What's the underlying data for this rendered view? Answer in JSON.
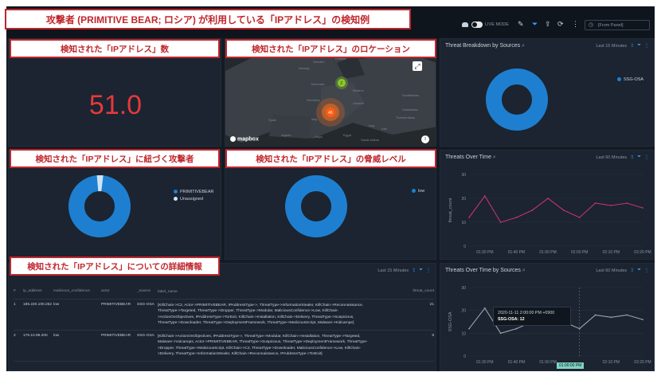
{
  "callouts": {
    "main": "攻撃者 (PRIMITIVE BEAR; ロシア) が利用している「IPアドレス」の検知例",
    "count": "検知された「IPアドレス」数",
    "location": "検知された「IPアドレス」のロケーション",
    "attacker": "検知された「IPアドレス」に紐づく攻撃者",
    "threat_level": "検知された「IPアドレス」の脅威レベル",
    "details": "検知された「IPアドレス」についての詳細情報"
  },
  "toolbar": {
    "live_mode": "LIVE MODE",
    "time_range": "[From Panel]"
  },
  "count_panel": {
    "value": "51.0"
  },
  "map": {
    "cluster_small": "2",
    "cluster_large": "46",
    "brand": "mapbox",
    "labels": [
      "Sweden",
      "Norway",
      "Finland",
      "Denmark",
      "Belarus",
      "Germany",
      "Ukraine",
      "Kazakhstan",
      "Uzbekistan",
      "Turkmenistan",
      "Spain",
      "Italy",
      "Algeria",
      "Libya",
      "Egypt",
      "Iraq",
      "Iran",
      "Saudi Arabia"
    ]
  },
  "threat_breakdown": {
    "title": "Threat Breakdown by Sources",
    "meta": "Last 15 Minutes",
    "legend": [
      "SSG-OSA"
    ],
    "colors": [
      "#1e7fd0"
    ]
  },
  "actor_panel": {
    "legend": [
      "PRIMITIVEBEAR",
      "Unassigned"
    ],
    "colors": [
      "#1e7fd0",
      "#cfe3f5"
    ]
  },
  "level_panel": {
    "legend": [
      "low"
    ],
    "colors": [
      "#1e7fd0"
    ]
  },
  "threats_over_time": {
    "title": "Threats Over Time",
    "meta": "Last 60 Minutes",
    "chart_data": {
      "type": "line",
      "x": [
        "01:25 PM",
        "01:30 PM",
        "01:35 PM",
        "01:40 PM",
        "01:45 PM",
        "01:50 PM",
        "01:55 PM",
        "02:00 PM",
        "02:05 PM",
        "02:10 PM",
        "02:15 PM",
        "02:20 PM"
      ],
      "values": [
        12,
        21,
        10,
        12,
        15,
        20,
        15,
        12,
        18,
        17,
        18,
        16
      ],
      "ylim": [
        0,
        30
      ],
      "yticks": [
        0,
        10,
        20,
        30
      ],
      "xticks": [
        "01:30 PM",
        "01:40 PM",
        "01:50 PM",
        "02:00 PM",
        "02:10 PM",
        "02:20 PM"
      ],
      "ylabel": "threat_count",
      "color": "#c4307c"
    }
  },
  "threats_by_sources": {
    "title": "Threats Over Time by Sources",
    "meta": "Last 60 Minutes",
    "tooltip_time": "2020-11-11 2:00:00 PM +0900",
    "tooltip_value": "SSG-OSA: 12",
    "highlight_label": "01:00:00 PM",
    "chart_data": {
      "type": "line",
      "x": [
        "01:25 PM",
        "01:30 PM",
        "01:35 PM",
        "01:40 PM",
        "01:45 PM",
        "01:50 PM",
        "01:55 PM",
        "02:00 PM",
        "02:05 PM",
        "02:10 PM",
        "02:15 PM",
        "02:20 PM"
      ],
      "values": [
        12,
        21,
        10,
        12,
        15,
        20,
        15,
        12,
        18,
        17,
        18,
        16
      ],
      "ylim": [
        0,
        30
      ],
      "yticks": [
        0,
        10,
        20,
        30
      ],
      "xticks": [
        "01:30 PM",
        "01:40 PM",
        "01:50 PM",
        "02:10 PM",
        "02:20 PM"
      ],
      "ylabel": "SSG-OSA",
      "color": "#9aa3ad"
    }
  },
  "details_table": {
    "meta": "Last 15 Minutes",
    "headers": [
      "#",
      "ip_address",
      "malicious_confidence",
      "actor",
      "_source",
      "label_name",
      "threat_count"
    ],
    "rows": [
      [
        "1",
        "185.220.100.252",
        "low",
        "PRIMITIVEBEAR",
        "SSG-OSA",
        "[KillChain->C2, Actor->PRIMITIVEBEAR, IPAddressType->, ThreatType->InformationStealer, KillChain->Reconnaissance, ThreatType->Targeted, ThreatType->Dropper, ThreatType->Modular, MaliciousConfidence->Low, KillChain->ActionOnObjectives, IPAddressType->TorExit, KillChain->Installation, KillChain->Delivery, ThreatType->Suspicious, ThreatType->Downloader, ThreatType->DeploymentFramework, ThreatType->MaliciousScript, Malware->Kidcarnpe]",
        "21"
      ],
      [
        "2",
        "176.10.99.200",
        "low",
        "PRIMITIVEBEAR",
        "SSG-OSA",
        "[KillChain->ActionOnObjectives, IPAddressType->, ThreatType->Modular, KillChain->Installation, ThreatType->Targeted, Malware->Vulcanops, Actor->PRIMITIVEBEAR, ThreatType->Suspicious, ThreatType->DeploymentFramework, ThreatType->Dropper, ThreatType->MaliciousScript, KillChain->C2, ThreatType->Downloader, MaliciousConfidence->Low, KillChain->Delivery, ThreatType->InformationStealer, KillChain->Reconnaissance, IPAddressType->TorExit]",
        "9"
      ]
    ]
  }
}
